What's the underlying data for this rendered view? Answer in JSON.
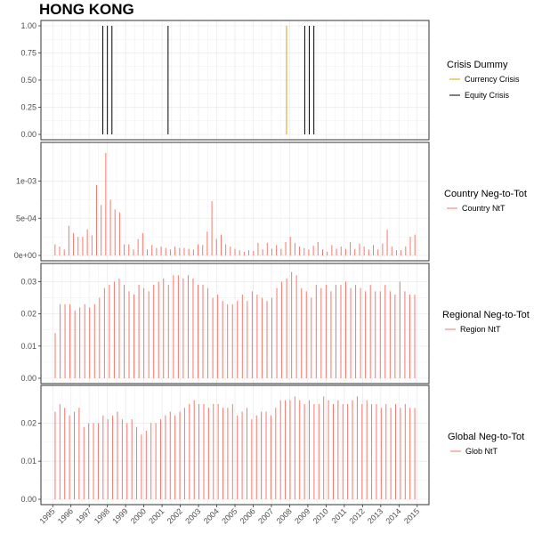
{
  "title": "HONG KONG",
  "x_tick_labels": [
    "1995",
    "1996",
    "1997",
    "1998",
    "1999",
    "2000",
    "2001",
    "2002",
    "2003",
    "2004",
    "2005",
    "2006",
    "2007",
    "2008",
    "2009",
    "2010",
    "2011",
    "2012",
    "2013",
    "2014",
    "2015"
  ],
  "colors": {
    "equity": "#000000",
    "currency": "#E69F00",
    "ntt": "#F8766D",
    "grid": "#ebebeb",
    "border": "#333333"
  },
  "chart_data": [
    {
      "type": "bar",
      "panel": "crisis",
      "legend_title": "Crisis Dummy",
      "series": [
        {
          "name": "Currency Crisis",
          "x": [
            2007.83
          ],
          "values": [
            1
          ]
        },
        {
          "name": "Equity Crisis",
          "x": [
            1997.75,
            1998.0,
            1998.25,
            2001.33,
            2008.83,
            2009.08,
            2009.33
          ],
          "values": [
            1,
            1,
            1,
            1,
            1,
            1,
            1
          ]
        }
      ],
      "ylim": [
        0,
        1
      ],
      "y_ticks": [
        "0.00",
        "0.25",
        "0.50",
        "0.75",
        "1.00"
      ]
    },
    {
      "type": "bar",
      "panel": "country",
      "legend_title": "Country Neg-to-Tot",
      "series": [
        {
          "name": "Country NtT",
          "values": [
            0.00015,
            0.00012,
            8e-05,
            0.0004,
            0.0003,
            0.00025,
            0.00025,
            0.00035,
            0.00027,
            0.00095,
            0.00068,
            0.00138,
            0.00075,
            0.00062,
            0.00058,
            0.00015,
            0.00015,
            8e-05,
            0.00022,
            0.0003,
            8e-05,
            0.00014,
            0.0001,
            0.00012,
            0.0001,
            8e-05,
            0.00012,
            0.0001,
            0.0001,
            9e-05,
            8e-05,
            0.00015,
            0.00014,
            0.00032,
            0.00073,
            0.00022,
            0.00028,
            0.00015,
            0.00012,
            9e-05,
            7e-05,
            5e-05,
            7e-05,
            6e-05,
            0.00017,
            8e-05,
            0.00017,
            9e-05,
            0.00014,
            9e-05,
            0.00018,
            0.00025,
            0.00017,
            0.00012,
            0.0001,
            8e-05,
            0.00013,
            0.00018,
            8e-05,
            5e-05,
            0.00014,
            9e-05,
            0.00012,
            9e-05,
            0.00018,
            9e-05,
            0.00016,
            0.00012,
            8e-05,
            0.00014,
            8e-05,
            0.00016,
            0.00035,
            0.00012,
            7e-05,
            7e-05,
            0.00012,
            0.00025,
            0.00028
          ]
        }
      ],
      "ylim": [
        0,
        0.00145
      ],
      "y_ticks": [
        "0e+00",
        "5e-04",
        "1e-03"
      ],
      "y_tick_values": [
        0,
        0.0005,
        0.001
      ]
    },
    {
      "type": "bar",
      "panel": "regional",
      "legend_title": "Regional Neg-to-Tot",
      "series": [
        {
          "name": "Region NtT",
          "values": [
            0.014,
            0.023,
            0.023,
            0.023,
            0.021,
            0.022,
            0.023,
            0.022,
            0.023,
            0.025,
            0.028,
            0.029,
            0.03,
            0.031,
            0.029,
            0.027,
            0.026,
            0.029,
            0.028,
            0.027,
            0.029,
            0.03,
            0.031,
            0.029,
            0.032,
            0.032,
            0.031,
            0.032,
            0.031,
            0.029,
            0.029,
            0.028,
            0.025,
            0.026,
            0.024,
            0.023,
            0.023,
            0.024,
            0.026,
            0.024,
            0.027,
            0.026,
            0.025,
            0.024,
            0.025,
            0.028,
            0.03,
            0.031,
            0.033,
            0.032,
            0.028,
            0.027,
            0.025,
            0.029,
            0.028,
            0.029,
            0.027,
            0.029,
            0.029,
            0.03,
            0.028,
            0.029,
            0.028,
            0.027,
            0.029,
            0.027,
            0.027,
            0.029,
            0.027,
            0.026,
            0.03,
            0.027,
            0.026,
            0.026
          ]
        }
      ],
      "ylim": [
        0,
        0.034
      ],
      "y_ticks": [
        "0.00",
        "0.01",
        "0.02",
        "0.03"
      ],
      "y_tick_values": [
        0,
        0.01,
        0.02,
        0.03
      ]
    },
    {
      "type": "bar",
      "panel": "global",
      "legend_title": "Global Neg-to-Tot",
      "series": [
        {
          "name": "Glob NtT",
          "values": [
            0.023,
            0.025,
            0.024,
            0.022,
            0.023,
            0.024,
            0.019,
            0.02,
            0.02,
            0.02,
            0.022,
            0.021,
            0.022,
            0.023,
            0.021,
            0.02,
            0.021,
            0.019,
            0.017,
            0.018,
            0.02,
            0.02,
            0.021,
            0.022,
            0.023,
            0.022,
            0.023,
            0.024,
            0.025,
            0.026,
            0.025,
            0.025,
            0.024,
            0.025,
            0.025,
            0.024,
            0.024,
            0.025,
            0.022,
            0.023,
            0.024,
            0.021,
            0.022,
            0.023,
            0.023,
            0.022,
            0.024,
            0.026,
            0.026,
            0.026,
            0.027,
            0.026,
            0.025,
            0.026,
            0.025,
            0.025,
            0.027,
            0.026,
            0.025,
            0.026,
            0.025,
            0.025,
            0.026,
            0.027,
            0.025,
            0.026,
            0.025,
            0.025,
            0.024,
            0.025,
            0.024,
            0.025,
            0.024,
            0.025,
            0.024,
            0.024
          ]
        }
      ],
      "ylim": [
        0,
        0.0285
      ],
      "y_ticks": [
        "0.00",
        "0.01",
        "0.02"
      ],
      "y_tick_values": [
        0,
        0.01,
        0.02
      ]
    }
  ],
  "x_range": [
    1994.5,
    2015.5
  ]
}
